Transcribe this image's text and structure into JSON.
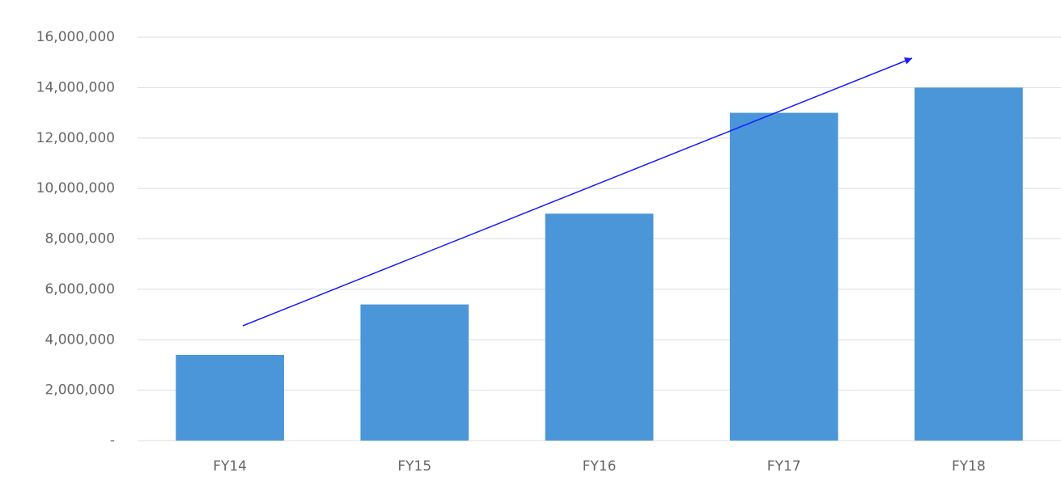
{
  "chart_data": {
    "type": "bar",
    "categories": [
      "FY14",
      "FY15",
      "FY16",
      "FY17",
      "FY18"
    ],
    "values": [
      3400000,
      5400000,
      9000000,
      13000000,
      14000000
    ],
    "color": "#4a96d9",
    "ylim": [
      0,
      16000000
    ],
    "yticks": [
      {
        "value": 0,
        "label": "-"
      },
      {
        "value": 2000000,
        "label": "2,000,000"
      },
      {
        "value": 4000000,
        "label": "4,000,000"
      },
      {
        "value": 6000000,
        "label": "6,000,000"
      },
      {
        "value": 8000000,
        "label": "8,000,000"
      },
      {
        "value": 10000000,
        "label": "10,000,000"
      },
      {
        "value": 12000000,
        "label": "12,000,000"
      },
      {
        "value": 14000000,
        "label": "14,000,000"
      },
      {
        "value": 16000000,
        "label": "16,000,000"
      }
    ],
    "grid": true
  }
}
